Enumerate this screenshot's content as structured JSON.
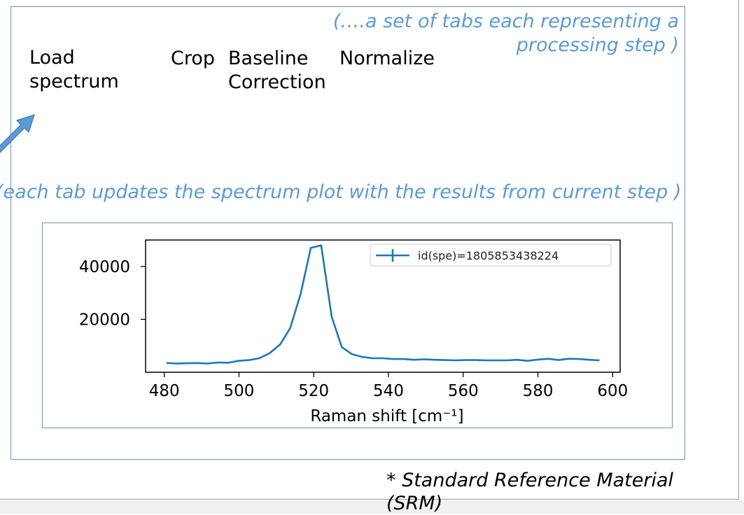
{
  "annotations": {
    "tabs_note": "(….a set of tabs each representing a processing step )",
    "update_note": "(each tab updates the spectrum plot with the results from current step )"
  },
  "tabs": [
    {
      "label": "Load\nspectrum"
    },
    {
      "label": "Crop"
    },
    {
      "label": "Baseline\nCorrection"
    },
    {
      "label": "Normalize"
    }
  ],
  "footnote": "* Standard Reference Material (SRM)",
  "colors": {
    "annotation": "#5b9bd5",
    "frame": "#6f8fb0",
    "series": "#1f77b4",
    "arrow": "#5b9bd5"
  },
  "chart_data": {
    "type": "line",
    "xlabel": "Raman shift [cm⁻¹]",
    "ylabel": "",
    "title": "",
    "xlim": [
      475,
      602
    ],
    "ylim": [
      0,
      50000
    ],
    "xticks": [
      480,
      500,
      520,
      540,
      560,
      580,
      600
    ],
    "yticks": [
      20000,
      40000
    ],
    "ytick_labels": [
      "20000",
      "40000"
    ],
    "legend_position": "top-right",
    "grid": false,
    "series": [
      {
        "name": "id(spe)=1805853438224",
        "x": [
          480.6,
          483.4,
          486.1,
          488.9,
          491.6,
          494.4,
          497.2,
          499.9,
          502.7,
          505.4,
          508.2,
          511.0,
          513.7,
          516.5,
          519.2,
          522.0,
          524.8,
          527.5,
          530.3,
          533.0,
          535.8,
          538.6,
          541.3,
          544.1,
          546.8,
          549.6,
          552.4,
          555.1,
          557.9,
          560.6,
          563.4,
          566.2,
          568.9,
          571.7,
          574.4,
          577.2,
          580.0,
          582.7,
          585.5,
          588.2,
          591.0,
          593.8,
          596.5
        ],
        "y": [
          3500,
          3300,
          3400,
          3500,
          3300,
          3700,
          3600,
          4300,
          4600,
          5300,
          7200,
          10500,
          16700,
          29700,
          47000,
          48000,
          21000,
          9500,
          6800,
          5800,
          5300,
          5300,
          5000,
          5000,
          4700,
          4900,
          4700,
          4600,
          4500,
          4600,
          4600,
          4500,
          4500,
          4500,
          4700,
          4300,
          4800,
          5100,
          4600,
          5100,
          5000,
          4700,
          4500
        ]
      }
    ]
  }
}
